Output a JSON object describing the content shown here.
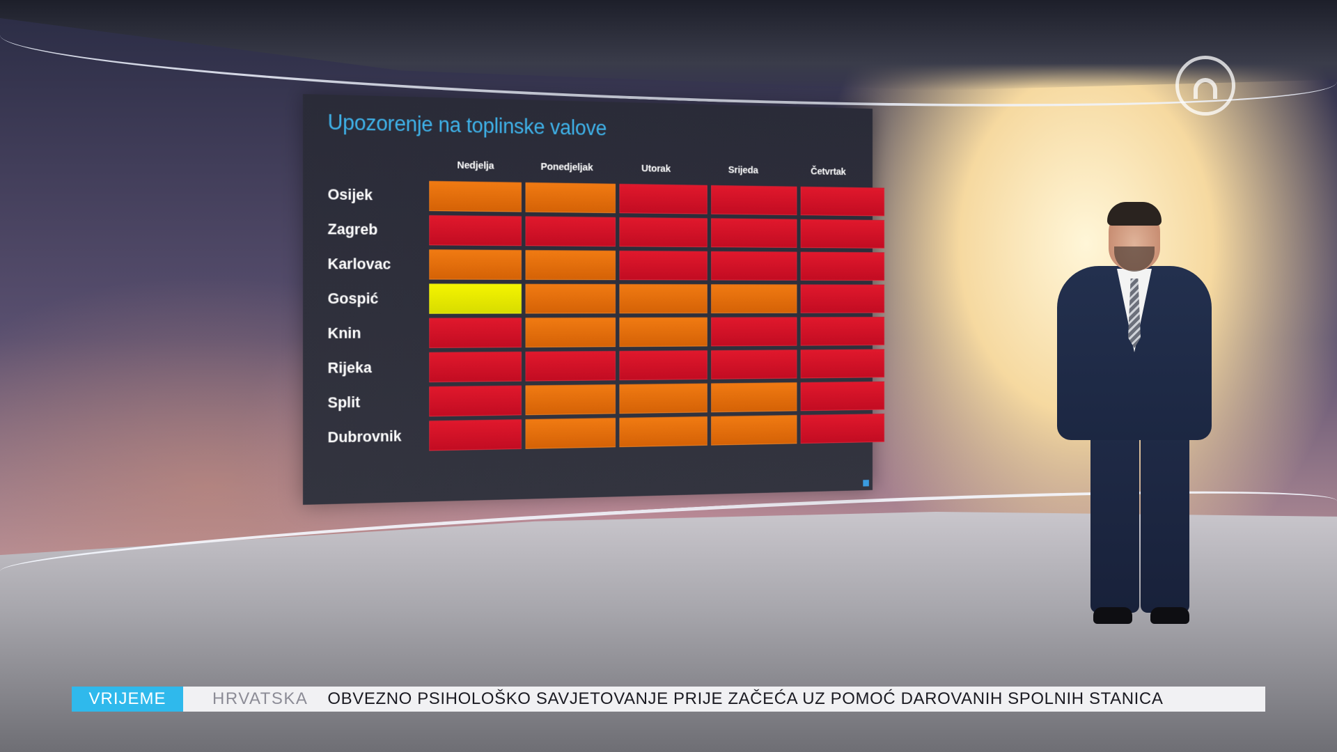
{
  "board": {
    "title": "Upozorenje na toplinske valove",
    "days": [
      "Nedjelja",
      "Ponedjeljak",
      "Utorak",
      "Srijeda",
      "Četvrtak"
    ],
    "rows": [
      {
        "city": "Osijek",
        "levels": [
          "orange",
          "orange",
          "red",
          "red",
          "red"
        ]
      },
      {
        "city": "Zagreb",
        "levels": [
          "red",
          "red",
          "red",
          "red",
          "red"
        ]
      },
      {
        "city": "Karlovac",
        "levels": [
          "orange",
          "orange",
          "red",
          "red",
          "red"
        ]
      },
      {
        "city": "Gospić",
        "levels": [
          "yellow",
          "orange",
          "orange",
          "orange",
          "red"
        ]
      },
      {
        "city": "Knin",
        "levels": [
          "red",
          "orange",
          "orange",
          "red",
          "red"
        ]
      },
      {
        "city": "Rijeka",
        "levels": [
          "red",
          "red",
          "red",
          "red",
          "red"
        ]
      },
      {
        "city": "Split",
        "levels": [
          "red",
          "orange",
          "orange",
          "orange",
          "red"
        ]
      },
      {
        "city": "Dubrovnik",
        "levels": [
          "red",
          "orange",
          "orange",
          "orange",
          "red"
        ]
      }
    ],
    "colors": {
      "yellow": "#f4f400",
      "orange": "#f07a12",
      "red": "#e0182c",
      "title": "#3fb3ea"
    }
  },
  "ticker": {
    "tag": "VRIJEME",
    "category": "HRVATSKA",
    "headline": "OBVEZNO PSIHOLOŠKO SAVJETOVANJE PRIJE ZAČEĆA UZ POMOĆ DAROVANIH SPOLNIH STANICA",
    "tag_color": "#2fb9ec"
  },
  "logo": {
    "icon": "channel-n-logo"
  }
}
